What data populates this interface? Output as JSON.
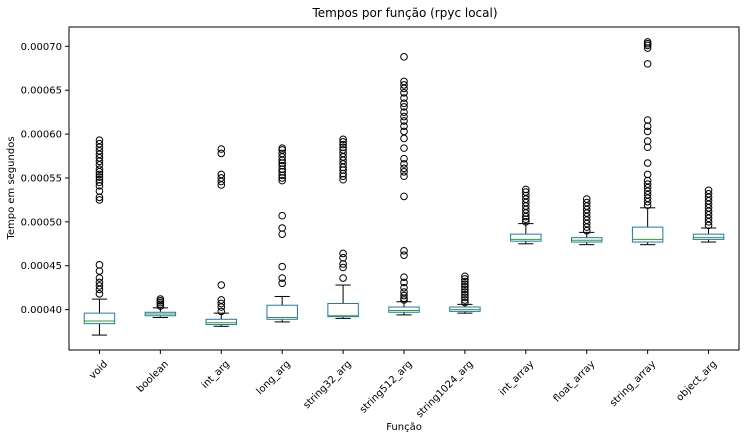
{
  "chart_data": {
    "type": "box",
    "title": "Tempos por função (rpyc local)",
    "xlabel": "Função",
    "ylabel": "Tempo em segundos",
    "ylim": [
      0.000354,
      0.000722
    ],
    "yticks": [
      0.0004,
      0.00045,
      0.0005,
      0.00055,
      0.0006,
      0.00065,
      0.0007
    ],
    "ytick_labels": [
      "0.00040",
      "0.00045",
      "0.00050",
      "0.00055",
      "0.00060",
      "0.00065",
      "0.00070"
    ],
    "grid": false,
    "colors": {
      "box": "#1f77b4",
      "whisker": "#000000",
      "median": "#2ca02c",
      "flier": "#000000"
    },
    "categories": [
      "void",
      "boolean",
      "int_arg",
      "long_arg",
      "string32_arg",
      "string512_arg",
      "string1024_arg",
      "int_array",
      "float_array",
      "string_array",
      "object_arg"
    ],
    "boxes": [
      {
        "name": "void",
        "whislo": 0.000371,
        "q1": 0.000384,
        "med": 0.000387,
        "q3": 0.000396,
        "whishi": 0.000412,
        "fliers": [
          0.000418,
          0.000423,
          0.000427,
          0.000431,
          0.000436,
          0.000444,
          0.000451,
          0.000525,
          0.000528,
          0.000535,
          0.000541,
          0.000545,
          0.000548,
          0.000551,
          0.000554,
          0.000557,
          0.00056,
          0.000565,
          0.000569,
          0.000573,
          0.000577,
          0.000581,
          0.000585,
          0.000589,
          0.000593
        ]
      },
      {
        "name": "boolean",
        "whislo": 0.000391,
        "q1": 0.000393,
        "med": 0.000395,
        "q3": 0.000397,
        "whishi": 0.000402,
        "fliers": [
          0.000404,
          0.000406,
          0.000408,
          0.00041,
          0.000412
        ]
      },
      {
        "name": "int_arg",
        "whislo": 0.000381,
        "q1": 0.000383,
        "med": 0.000385,
        "q3": 0.000389,
        "whishi": 0.000396,
        "fliers": [
          0.000398,
          0.000403,
          0.000407,
          0.000411,
          0.000428,
          0.000542,
          0.000546,
          0.00055,
          0.000554,
          0.000578,
          0.000583
        ]
      },
      {
        "name": "long_arg",
        "whislo": 0.000386,
        "q1": 0.000389,
        "med": 0.000391,
        "q3": 0.000405,
        "whishi": 0.000415,
        "fliers": [
          0.00043,
          0.000436,
          0.000449,
          0.000486,
          0.000493,
          0.000507,
          0.000547,
          0.00055,
          0.000553,
          0.000557,
          0.00056,
          0.000564,
          0.000567,
          0.00057,
          0.000574,
          0.000578,
          0.000582,
          0.000584
        ]
      },
      {
        "name": "string32_arg",
        "whislo": 0.00039,
        "q1": 0.000392,
        "med": 0.000393,
        "q3": 0.000407,
        "whishi": 0.000428,
        "fliers": [
          0.000436,
          0.000448,
          0.000452,
          0.000459,
          0.000464,
          0.000548,
          0.000552,
          0.000555,
          0.000559,
          0.000562,
          0.000566,
          0.00057,
          0.000574,
          0.000578,
          0.000582,
          0.000585,
          0.000588,
          0.000591,
          0.000594
        ]
      },
      {
        "name": "string512_arg",
        "whislo": 0.000394,
        "q1": 0.000397,
        "med": 0.000399,
        "q3": 0.000403,
        "whishi": 0.000409,
        "fliers": [
          0.000411,
          0.000413,
          0.000416,
          0.00042,
          0.000425,
          0.000431,
          0.000437,
          0.000462,
          0.000467,
          0.000529,
          0.000552,
          0.000557,
          0.000561,
          0.000566,
          0.000572,
          0.000584,
          0.000595,
          0.000603,
          0.000609,
          0.000615,
          0.00062,
          0.000625,
          0.000631,
          0.000635,
          0.000641,
          0.000647,
          0.000652,
          0.000656,
          0.00066,
          0.000688
        ]
      },
      {
        "name": "string1024_arg",
        "whislo": 0.000396,
        "q1": 0.000398,
        "med": 0.0004,
        "q3": 0.000403,
        "whishi": 0.000406,
        "fliers": [
          0.000408,
          0.000411,
          0.000414,
          0.000417,
          0.00042,
          0.000423,
          0.000426,
          0.000429,
          0.000432,
          0.000435,
          0.000438
        ]
      },
      {
        "name": "int_array",
        "whislo": 0.000475,
        "q1": 0.000478,
        "med": 0.00048,
        "q3": 0.000486,
        "whishi": 0.000498,
        "fliers": [
          0.0005,
          0.000503,
          0.000506,
          0.00051,
          0.000514,
          0.000518,
          0.000522,
          0.000526,
          0.00053,
          0.000534,
          0.000537
        ]
      },
      {
        "name": "float_array",
        "whislo": 0.000474,
        "q1": 0.000477,
        "med": 0.000479,
        "q3": 0.000482,
        "whishi": 0.000488,
        "fliers": [
          0.00049,
          0.000494,
          0.000498,
          0.000502,
          0.000506,
          0.00051,
          0.000514,
          0.000518,
          0.000522,
          0.000526
        ]
      },
      {
        "name": "string_array",
        "whislo": 0.000474,
        "q1": 0.000477,
        "med": 0.00048,
        "q3": 0.000494,
        "whishi": 0.000516,
        "fliers": [
          0.000519,
          0.000523,
          0.000527,
          0.000531,
          0.000535,
          0.000539,
          0.000543,
          0.000547,
          0.000554,
          0.000567,
          0.000585,
          0.000592,
          0.000603,
          0.000609,
          0.000616,
          0.00068,
          0.000698,
          0.000701,
          0.000703,
          0.000705
        ]
      },
      {
        "name": "object_arg",
        "whislo": 0.000477,
        "q1": 0.00048,
        "med": 0.000482,
        "q3": 0.000486,
        "whishi": 0.000493,
        "fliers": [
          0.000496,
          0.0005,
          0.000504,
          0.000508,
          0.000512,
          0.000516,
          0.00052,
          0.000524,
          0.000528,
          0.000532,
          0.000536
        ]
      }
    ]
  }
}
